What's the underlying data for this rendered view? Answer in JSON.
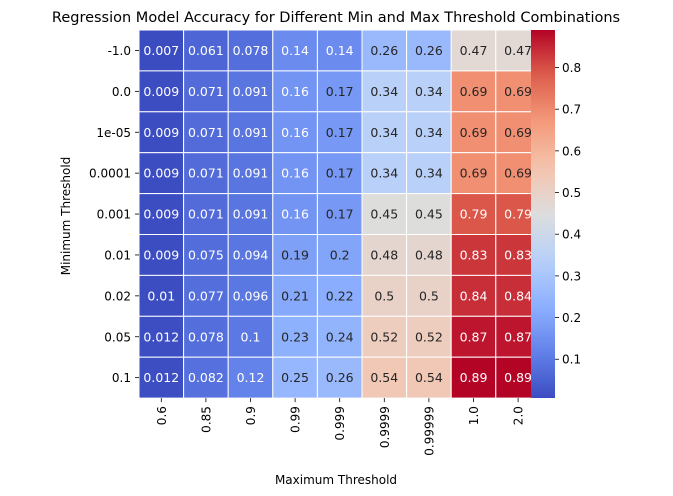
{
  "chart_data": {
    "type": "heatmap",
    "title": "Regression Model Accuracy for Different Min and Max Threshold Combinations",
    "xlabel": "Maximum Threshold",
    "ylabel": "Minimum Threshold",
    "x_categories": [
      "0.6",
      "0.85",
      "0.9",
      "0.99",
      "0.999",
      "0.9999",
      "0.99999",
      "1.0",
      "2.0"
    ],
    "y_categories": [
      "-1.0",
      "0.0",
      "1e-05",
      "0.0001",
      "0.001",
      "0.01",
      "0.02",
      "0.05",
      "0.1"
    ],
    "values": [
      [
        0.007,
        0.061,
        0.078,
        0.14,
        0.14,
        0.26,
        0.26,
        0.47,
        0.47
      ],
      [
        0.009,
        0.071,
        0.091,
        0.16,
        0.17,
        0.34,
        0.34,
        0.69,
        0.69
      ],
      [
        0.009,
        0.071,
        0.091,
        0.16,
        0.17,
        0.34,
        0.34,
        0.69,
        0.69
      ],
      [
        0.009,
        0.071,
        0.091,
        0.16,
        0.17,
        0.34,
        0.34,
        0.69,
        0.69
      ],
      [
        0.009,
        0.071,
        0.091,
        0.16,
        0.17,
        0.45,
        0.45,
        0.79,
        0.79
      ],
      [
        0.009,
        0.075,
        0.094,
        0.19,
        0.2,
        0.48,
        0.48,
        0.83,
        0.83
      ],
      [
        0.01,
        0.077,
        0.096,
        0.21,
        0.22,
        0.5,
        0.5,
        0.84,
        0.84
      ],
      [
        0.012,
        0.078,
        0.1,
        0.23,
        0.24,
        0.52,
        0.52,
        0.87,
        0.87
      ],
      [
        0.012,
        0.082,
        0.12,
        0.25,
        0.26,
        0.54,
        0.54,
        0.89,
        0.89
      ]
    ],
    "colormap": "coolwarm",
    "color_range": [
      0.007,
      0.89
    ],
    "colorbar_ticks": [
      "0.1",
      "0.2",
      "0.3",
      "0.4",
      "0.5",
      "0.6",
      "0.7",
      "0.8"
    ]
  }
}
